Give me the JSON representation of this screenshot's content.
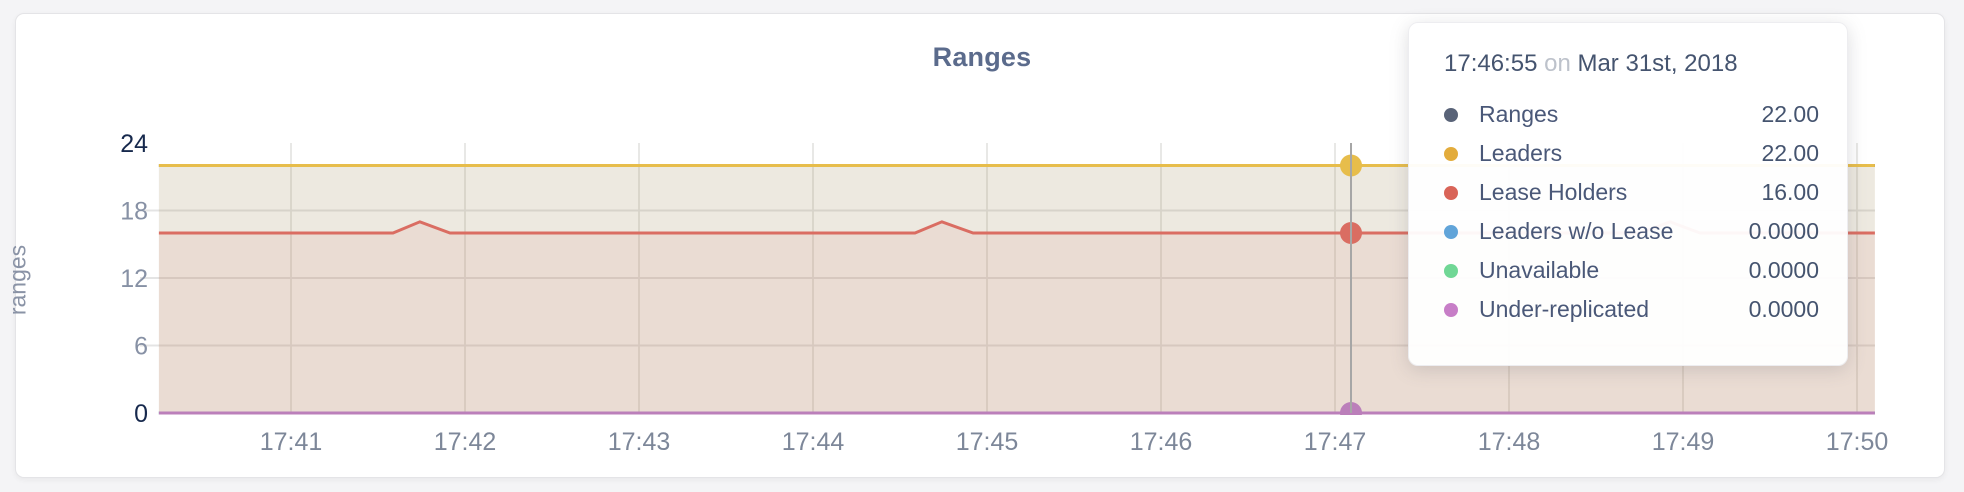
{
  "page": {
    "title": "Ranges"
  },
  "chart_data": {
    "type": "area",
    "title": "Ranges",
    "ylabel": "ranges",
    "xlabel": "",
    "x_unit": "minutes after 17:40",
    "ylim": [
      0,
      24
    ],
    "x_domain": [
      0.241,
      10.103
    ],
    "y_ticks": [
      0,
      6,
      12,
      18,
      24
    ],
    "y_major_ticks": [
      0,
      24
    ],
    "grid_y_values": [
      6,
      12,
      18
    ],
    "x_ticks": [
      {
        "minute": 1,
        "label": "17:41"
      },
      {
        "minute": 2,
        "label": "17:42"
      },
      {
        "minute": 3,
        "label": "17:43"
      },
      {
        "minute": 4,
        "label": "17:44"
      },
      {
        "minute": 5,
        "label": "17:45"
      },
      {
        "minute": 6,
        "label": "17:46"
      },
      {
        "minute": 7,
        "label": "17:47"
      },
      {
        "minute": 8,
        "label": "17:48"
      },
      {
        "minute": 9,
        "label": "17:49"
      },
      {
        "minute": 10,
        "label": "17:50"
      }
    ],
    "series": [
      {
        "name": "Ranges",
        "color": "#596378",
        "fill_opacity": 0.1,
        "points": [
          [
            0.241,
            22
          ],
          [
            10.103,
            22
          ]
        ]
      },
      {
        "name": "Leaders",
        "color": "#e7bd4b",
        "fill_opacity": 0.1,
        "points": [
          [
            0.241,
            22
          ],
          [
            10.103,
            22
          ]
        ]
      },
      {
        "name": "Lease Holders",
        "color": "#da6d62",
        "fill_opacity": 0.1,
        "points": [
          [
            0.241,
            16
          ],
          [
            1.586,
            16
          ],
          [
            1.741,
            17
          ],
          [
            1.914,
            16
          ],
          [
            4.586,
            16
          ],
          [
            4.741,
            17
          ],
          [
            4.92,
            16
          ],
          [
            8.753,
            16
          ],
          [
            8.926,
            17
          ],
          [
            9.098,
            16
          ],
          [
            10.103,
            16
          ]
        ]
      },
      {
        "name": "Leaders w/o Lease",
        "color": "#61a4d9",
        "fill_opacity": 0.1,
        "points": [
          [
            0.241,
            0
          ],
          [
            10.103,
            0
          ]
        ]
      },
      {
        "name": "Unavailable",
        "color": "#70d795",
        "fill_opacity": 0.1,
        "points": [
          [
            0.241,
            0
          ],
          [
            10.103,
            0
          ]
        ]
      },
      {
        "name": "Under-replicated",
        "color": "#bb7fba",
        "fill_opacity": 0.1,
        "points": [
          [
            0.241,
            0
          ],
          [
            10.103,
            0
          ]
        ]
      }
    ],
    "hover": {
      "x_minute": 7.092,
      "line_color": "#a6a6a6",
      "dots": [
        {
          "series": "Leaders",
          "value": 22,
          "color": "#e7bd4b"
        },
        {
          "series": "Lease Holders",
          "value": 16,
          "color": "#da6d62"
        },
        {
          "series": "Under-replicated",
          "value": 0,
          "color": "#bb7fba"
        }
      ]
    },
    "legend_position": "tooltip-only",
    "grid": true
  },
  "tooltip": {
    "time": "17:46:55",
    "conjunction": "on",
    "date": "Mar 31st, 2018",
    "rows": [
      {
        "label": "Ranges",
        "value": "22.00",
        "color": "#596378"
      },
      {
        "label": "Leaders",
        "value": "22.00",
        "color": "#e3ac3c"
      },
      {
        "label": "Lease Holders",
        "value": "16.00",
        "color": "#d96458"
      },
      {
        "label": "Leaders w/o Lease",
        "value": "0.0000",
        "color": "#61a4d9"
      },
      {
        "label": "Unavailable",
        "value": "0.0000",
        "color": "#70d795"
      },
      {
        "label": "Under-replicated",
        "value": "0.0000",
        "color": "#c77ec7"
      }
    ]
  }
}
